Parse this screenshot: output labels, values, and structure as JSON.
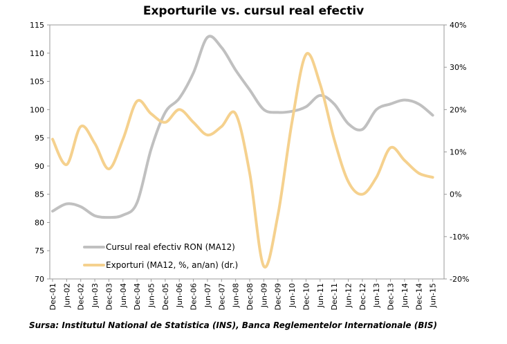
{
  "chart_data": {
    "type": "line",
    "title": "Exporturile vs. cursul real efectiv",
    "source": "Sursa: Institutul National de Statistica (INS), Banca Reglementelor Internationale (BIS)",
    "x_labels": [
      "Dec-01",
      "Jun-02",
      "Dec-02",
      "Jun-03",
      "Dec-03",
      "Jun-04",
      "Dec-04",
      "Jun-05",
      "Dec-05",
      "Jun-06",
      "Dec-06",
      "Jun-07",
      "Dec-07",
      "Jun-08",
      "Dec-08",
      "Jun-09",
      "Dec-09",
      "Jun-10",
      "Dec-10",
      "Jun-11",
      "Dec-11",
      "Jun-12",
      "Dec-12",
      "Jun-13",
      "Dec-13",
      "Jun-14",
      "Dec-14",
      "Jun-15"
    ],
    "y_left": {
      "min": 70,
      "max": 115,
      "step": 5,
      "ticks": [
        "70",
        "75",
        "80",
        "85",
        "90",
        "95",
        "100",
        "105",
        "110",
        "115"
      ]
    },
    "y_right": {
      "min": -20,
      "max": 40,
      "step": 10,
      "ticks": [
        "-20%",
        "-10%",
        "0%",
        "10%",
        "20%",
        "30%",
        "40%"
      ]
    },
    "legend_position": "bottom-left",
    "series": [
      {
        "name": "Cursul real efectiv RON (MA12)",
        "axis": "left",
        "color": "#c0c0c0",
        "points": [
          [
            "Dec-01",
            82
          ],
          [
            "Jun-02",
            83.3
          ],
          [
            "Dec-02",
            82.8
          ],
          [
            "Jun-03",
            81.2
          ],
          [
            "Dec-03",
            80.9
          ],
          [
            "Jun-04",
            81.3
          ],
          [
            "Dec-04",
            83.5
          ],
          [
            "Jun-05",
            93
          ],
          [
            "Dec-05",
            99.5
          ],
          [
            "Jun-06",
            102
          ],
          [
            "Dec-06",
            106.5
          ],
          [
            "Jun-07",
            112.8
          ],
          [
            "Dec-07",
            111
          ],
          [
            "Jun-08",
            107
          ],
          [
            "Dec-08",
            103.5
          ],
          [
            "Jun-09",
            100
          ],
          [
            "Dec-09",
            99.5
          ],
          [
            "Jun-10",
            99.7
          ],
          [
            "Dec-10",
            100.5
          ],
          [
            "Jun-11",
            102.5
          ],
          [
            "Dec-11",
            101
          ],
          [
            "Jun-12",
            97.5
          ],
          [
            "Dec-12",
            96.5
          ],
          [
            "Jun-13",
            100
          ],
          [
            "Dec-13",
            101
          ],
          [
            "Jun-14",
            101.7
          ],
          [
            "Dec-14",
            101
          ],
          [
            "Jun-15",
            99
          ]
        ]
      },
      {
        "name": "Exporturi (MA12, %, an/an) (dr.)",
        "axis": "right",
        "color": "#f5d18e",
        "points": [
          [
            "Dec-01",
            13
          ],
          [
            "Jun-02",
            7
          ],
          [
            "Dec-02",
            16
          ],
          [
            "Jun-03",
            12
          ],
          [
            "Dec-03",
            6
          ],
          [
            "Jun-04",
            13
          ],
          [
            "Dec-04",
            22
          ],
          [
            "Jun-05",
            19
          ],
          [
            "Dec-05",
            17
          ],
          [
            "Jun-06",
            20
          ],
          [
            "Dec-06",
            17
          ],
          [
            "Jun-07",
            14
          ],
          [
            "Dec-07",
            16
          ],
          [
            "Jun-08",
            19
          ],
          [
            "Dec-08",
            5
          ],
          [
            "Jun-09",
            -17
          ],
          [
            "Dec-09",
            -5
          ],
          [
            "Jun-10",
            17
          ],
          [
            "Dec-10",
            33
          ],
          [
            "Jun-11",
            26
          ],
          [
            "Dec-11",
            13
          ],
          [
            "Jun-12",
            3
          ],
          [
            "Dec-12",
            0
          ],
          [
            "Jun-13",
            4
          ],
          [
            "Dec-13",
            11
          ],
          [
            "Jun-14",
            8
          ],
          [
            "Dec-14",
            5
          ],
          [
            "Jun-15",
            4
          ]
        ]
      }
    ]
  }
}
